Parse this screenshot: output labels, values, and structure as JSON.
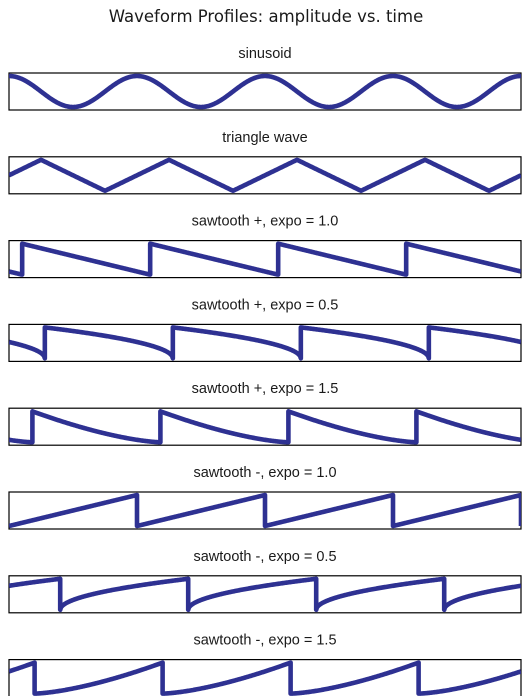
{
  "figure": {
    "title": "Waveform Profiles: amplitude vs. time"
  },
  "chart_data": {
    "type": "line",
    "title": "Waveform Profiles: amplitude vs. time",
    "xlabel": "",
    "ylabel": "",
    "line_color": "#2e3192",
    "frame_color": "#000000",
    "amplitude_range": [
      0,
      1
    ],
    "grid": false,
    "legend": "none",
    "panels": [
      {
        "label": "sinusoid",
        "shape": "sine",
        "cycles": 4,
        "phase": 0.25
      },
      {
        "label": "triangle wave",
        "shape": "triangle",
        "cycles": 4,
        "phase": 0.75
      },
      {
        "label": "sawtooth +, expo = 1.0",
        "shape": "sawtooth+",
        "expo": 1.0,
        "cycles": 4,
        "phase": 0.9
      },
      {
        "label": "sawtooth +, expo = 0.5",
        "shape": "sawtooth+",
        "expo": 0.5,
        "cycles": 4,
        "phase": 0.72
      },
      {
        "label": "sawtooth +, expo = 1.5",
        "shape": "sawtooth+",
        "expo": 1.5,
        "cycles": 4,
        "phase": 0.82
      },
      {
        "label": "sawtooth -, expo = 1.0",
        "shape": "sawtooth-",
        "expo": 1.0,
        "cycles": 4,
        "phase": 0.0
      },
      {
        "label": "sawtooth -, expo = 0.5",
        "shape": "sawtooth-",
        "expo": 0.5,
        "cycles": 4,
        "phase": 0.6
      },
      {
        "label": "sawtooth -, expo = 1.5",
        "shape": "sawtooth-",
        "expo": 1.5,
        "cycles": 4,
        "phase": 0.8
      }
    ]
  }
}
